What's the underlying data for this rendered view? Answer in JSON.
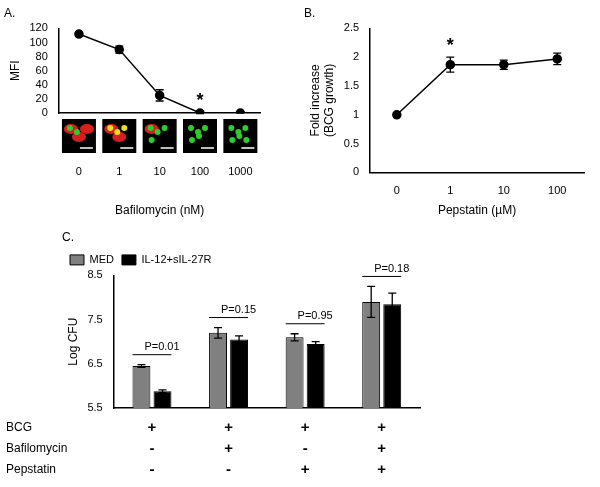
{
  "chart_data": [
    {
      "type": "line",
      "title": "A.",
      "categories": [
        "0",
        "1",
        "10",
        "100",
        "1000"
      ],
      "values": [
        112,
        90,
        25,
        0,
        0
      ],
      "errors": [
        2,
        5,
        8,
        1,
        0
      ],
      "color": "#000000",
      "marker": "circle",
      "x_label": "Bafilomycin (nM)",
      "y_label": "MFI",
      "ylim": [
        0,
        120
      ],
      "yticks": [
        0,
        20,
        40,
        60,
        80,
        100,
        120
      ],
      "grid": false,
      "annotations": [
        {
          "text": "*",
          "x": "100"
        }
      ]
    },
    {
      "type": "line",
      "title": "B.",
      "categories": [
        "0",
        "1",
        "10",
        "100"
      ],
      "values": [
        1,
        1.87,
        1.87,
        1.97
      ],
      "errors": [
        0,
        0.13,
        0.08,
        0.1
      ],
      "color": "#000000",
      "marker": "circle",
      "x_label": "Pepstatin (µM)",
      "y_label": [
        "Fold increase",
        "(BCG growth)"
      ],
      "ylim": [
        0,
        2.5
      ],
      "yticks": [
        0,
        0.5,
        1,
        1.5,
        2,
        2.5
      ],
      "grid": false,
      "annotations": [
        {
          "text": "*",
          "x": "1"
        }
      ]
    },
    {
      "type": "bar",
      "title": "C.",
      "categories": [
        null,
        null,
        null,
        null
      ],
      "series": [
        {
          "name": "MED",
          "color": "#808080",
          "values": [
            6.45,
            7.2,
            7.1,
            7.9
          ],
          "errors": [
            0.03,
            0.12,
            0.08,
            0.35
          ]
        },
        {
          "name": "IL-12+sIL-27R",
          "color": "#000000",
          "values": [
            5.88,
            7.05,
            6.95,
            7.85
          ],
          "errors": [
            0.03,
            0.08,
            0.05,
            0.25
          ]
        }
      ],
      "y_label": "Log CFU",
      "ylim": [
        5.5,
        8.5
      ],
      "yticks": [
        5.5,
        6.5,
        7.5,
        8.5
      ],
      "grid": false,
      "legend": "top-left",
      "tick_labels": "y",
      "annotations": [
        {
          "text": "P=0.01",
          "category": 0
        },
        {
          "text": "P=0.15",
          "category": 1
        },
        {
          "text": "P=0.95",
          "category": 2
        },
        {
          "text": "P=0.18",
          "category": 3
        }
      ],
      "rows": [
        {
          "label": "BCG",
          "cells": [
            "+",
            "+",
            "+",
            "+"
          ]
        },
        {
          "label": "Bafilomycin",
          "cells": [
            "-",
            "+",
            "-",
            "+"
          ]
        },
        {
          "label": "Pepstatin",
          "cells": [
            "-",
            "-",
            "+",
            "+"
          ]
        }
      ]
    }
  ]
}
